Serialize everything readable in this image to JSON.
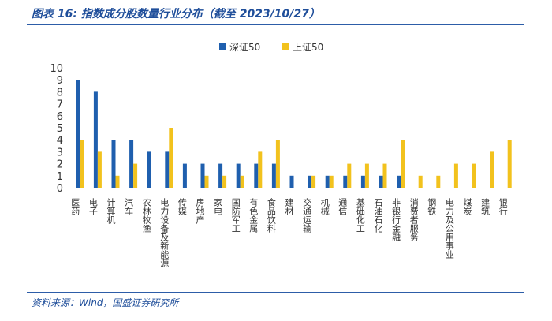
{
  "header": {
    "title": "图表 16:  指数成分股数量行业分布（截至 2023/10/27）"
  },
  "footer": {
    "source": "资料来源：Wind，国盛证券研究所"
  },
  "colors": {
    "series1": "#1f5fae",
    "series2": "#f2c21d",
    "accent": "#2d5da8"
  },
  "chart_data": {
    "type": "bar",
    "title": "",
    "xlabel": "",
    "ylabel": "",
    "ylim": [
      0,
      10
    ],
    "yticks": [
      0,
      1,
      2,
      3,
      4,
      5,
      6,
      7,
      8,
      9,
      10
    ],
    "grid": false,
    "legend_position": "top-center",
    "categories": [
      "医药",
      "电子",
      "计算机",
      "汽车",
      "农林牧渔",
      "电力设备及新能源",
      "传媒",
      "房地产",
      "家电",
      "国防军工",
      "有色金属",
      "食品饮料",
      "建材",
      "交通运输",
      "机械",
      "通信",
      "基础化工",
      "石油石化",
      "非银行金融",
      "消费者服务",
      "钢铁",
      "电力及公用事业",
      "煤炭",
      "建筑",
      "银行"
    ],
    "series": [
      {
        "name": "深证50",
        "values": [
          9,
          8,
          4,
          4,
          3,
          3,
          2,
          2,
          2,
          2,
          2,
          2,
          1,
          1,
          1,
          1,
          1,
          1,
          1,
          0,
          0,
          0,
          0,
          0,
          0
        ]
      },
      {
        "name": "上证50",
        "values": [
          4,
          3,
          1,
          2,
          0,
          5,
          0,
          1,
          1,
          1,
          3,
          4,
          0,
          1,
          1,
          2,
          2,
          2,
          4,
          1,
          1,
          2,
          2,
          3,
          4
        ]
      }
    ]
  }
}
